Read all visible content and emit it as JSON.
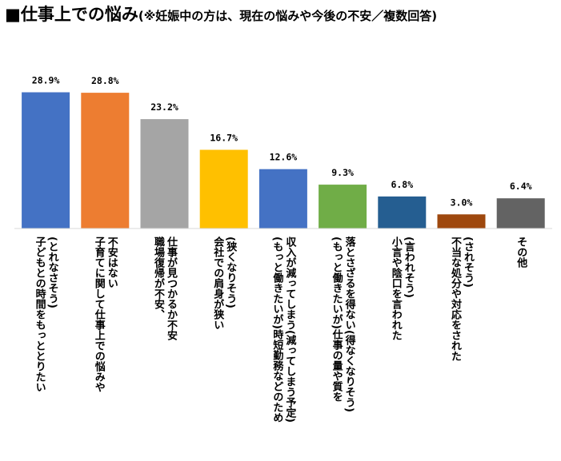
{
  "title": {
    "main": "■仕事上での悩み",
    "sub": "(※妊娠中の方は、現在の悩みや今後の不安／複数回答)"
  },
  "chart_data": {
    "type": "bar",
    "ylim": [
      0,
      30
    ],
    "grid": false,
    "categories": [
      {
        "lines": [
          "(とれなさそう)",
          "子どもとの時間をもっととりたい"
        ]
      },
      {
        "lines": [
          "不安はない",
          "子育てに関して仕事上での悩みや"
        ]
      },
      {
        "lines": [
          "仕事が見つかるか不安",
          "職場復帰が不安、"
        ]
      },
      {
        "lines": [
          "(狭くなりそう)",
          "会社での肩身が狭い"
        ]
      },
      {
        "lines": [
          "収入が減ってしまう(減ってしまう予定)",
          "(もっと働きたいが)時短勤務などのため"
        ]
      },
      {
        "lines": [
          "落とさざるを得ない(得なくなりそう)",
          "(もっと働きたいが)仕事の量や質を"
        ]
      },
      {
        "lines": [
          "(言われそう)",
          "小言や陰口を言われた"
        ]
      },
      {
        "lines": [
          "(されそう)",
          "不当な処分や対応をされた"
        ]
      },
      {
        "lines": [
          "その他"
        ]
      }
    ],
    "values": [
      28.9,
      28.8,
      23.2,
      16.7,
      12.6,
      9.3,
      6.8,
      3.0,
      6.4
    ],
    "value_labels": [
      "28.9%",
      "28.8%",
      "23.2%",
      "16.7%",
      "12.6%",
      "9.3%",
      "6.8%",
      "3.0%",
      "6.4%"
    ],
    "colors": [
      "#4472C4",
      "#ED7D31",
      "#A5A5A5",
      "#FFC000",
      "#4472C4",
      "#70AD47",
      "#255E91",
      "#9E480E",
      "#636363"
    ]
  }
}
